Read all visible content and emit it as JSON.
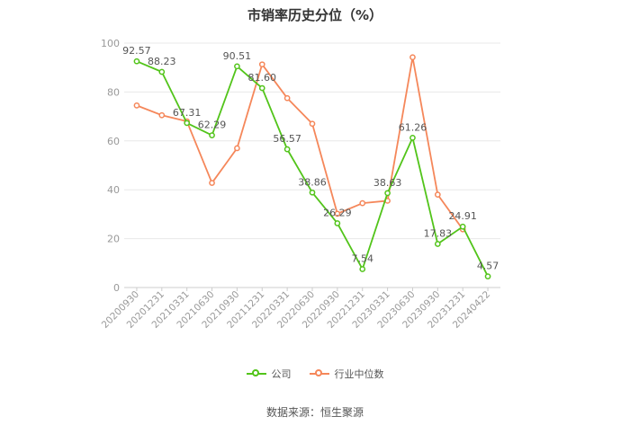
{
  "chart_data": {
    "type": "line",
    "title": "市销率历史分位（%）",
    "categories": [
      "20200930",
      "20201231",
      "20210331",
      "20210630",
      "20210930",
      "20211231",
      "20220331",
      "20220630",
      "20220930",
      "20221231",
      "20230331",
      "20230630",
      "20230930",
      "20231231",
      "20240422"
    ],
    "ylim": [
      0,
      100
    ],
    "yticks": [
      0,
      20,
      40,
      60,
      80,
      100
    ],
    "grid": true,
    "legend_position": "bottom",
    "series": [
      {
        "name": "公司",
        "color": "#52c41a",
        "values": [
          92.57,
          88.23,
          67.31,
          62.29,
          90.51,
          81.6,
          56.57,
          38.86,
          26.29,
          7.54,
          38.63,
          61.26,
          17.83,
          24.91,
          4.57
        ],
        "labels": [
          "92.57",
          "88.23",
          "67.31",
          "62.29",
          "90.51",
          "81.60",
          "56.57",
          "38.86",
          "26.29",
          "7.54",
          "38.63",
          "61.26",
          "17.83",
          "24.91",
          "4.57"
        ]
      },
      {
        "name": "行业中位数",
        "color": "#f5875a",
        "values": [
          74.5,
          70.5,
          68.0,
          42.8,
          57.0,
          91.3,
          77.5,
          67.0,
          30.2,
          34.5,
          35.5,
          94.2,
          38.0,
          23.8,
          null
        ]
      }
    ]
  },
  "source": "数据来源：恒生聚源"
}
